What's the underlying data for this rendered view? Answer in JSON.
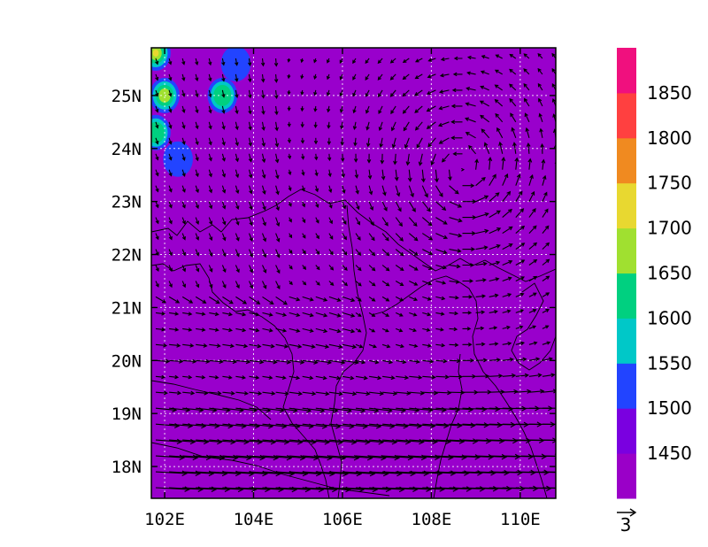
{
  "map": {
    "lon_range": [
      101.7,
      110.8
    ],
    "lat_range": [
      17.4,
      25.9
    ],
    "lon_ticks": [
      102,
      104,
      106,
      108,
      110
    ],
    "lat_ticks": [
      18,
      19,
      20,
      21,
      22,
      23,
      24,
      25
    ],
    "lon_tick_labels": [
      "102E",
      "104E",
      "106E",
      "108E",
      "110E"
    ],
    "lat_tick_labels": [
      "18N",
      "19N",
      "20N",
      "21N",
      "22N",
      "23N",
      "24N",
      "25N"
    ],
    "gridlines": true,
    "background_fill_color": "#9900cc",
    "high_values": [
      {
        "lon": 101.8,
        "lat": 25.8,
        "value": 1800
      },
      {
        "lon": 102.0,
        "lat": 25.0,
        "value": 1650
      },
      {
        "lon": 101.8,
        "lat": 24.3,
        "value": 1600
      },
      {
        "lon": 103.3,
        "lat": 25.0,
        "value": 1600
      },
      {
        "lon": 103.6,
        "lat": 25.6,
        "value": 1520
      },
      {
        "lon": 102.3,
        "lat": 23.8,
        "value": 1510
      }
    ]
  },
  "colorbar": {
    "levels": [
      "1450",
      "1500",
      "1550",
      "1600",
      "1650",
      "1700",
      "1750",
      "1800",
      "1850"
    ],
    "colors": [
      "#9a00c8",
      "#7a00e0",
      "#2244ff",
      "#00c8c8",
      "#00d080",
      "#a0e030",
      "#e8d830",
      "#f08a20",
      "#ff4040",
      "#f0107e"
    ]
  },
  "vector_key": {
    "label": "3"
  }
}
